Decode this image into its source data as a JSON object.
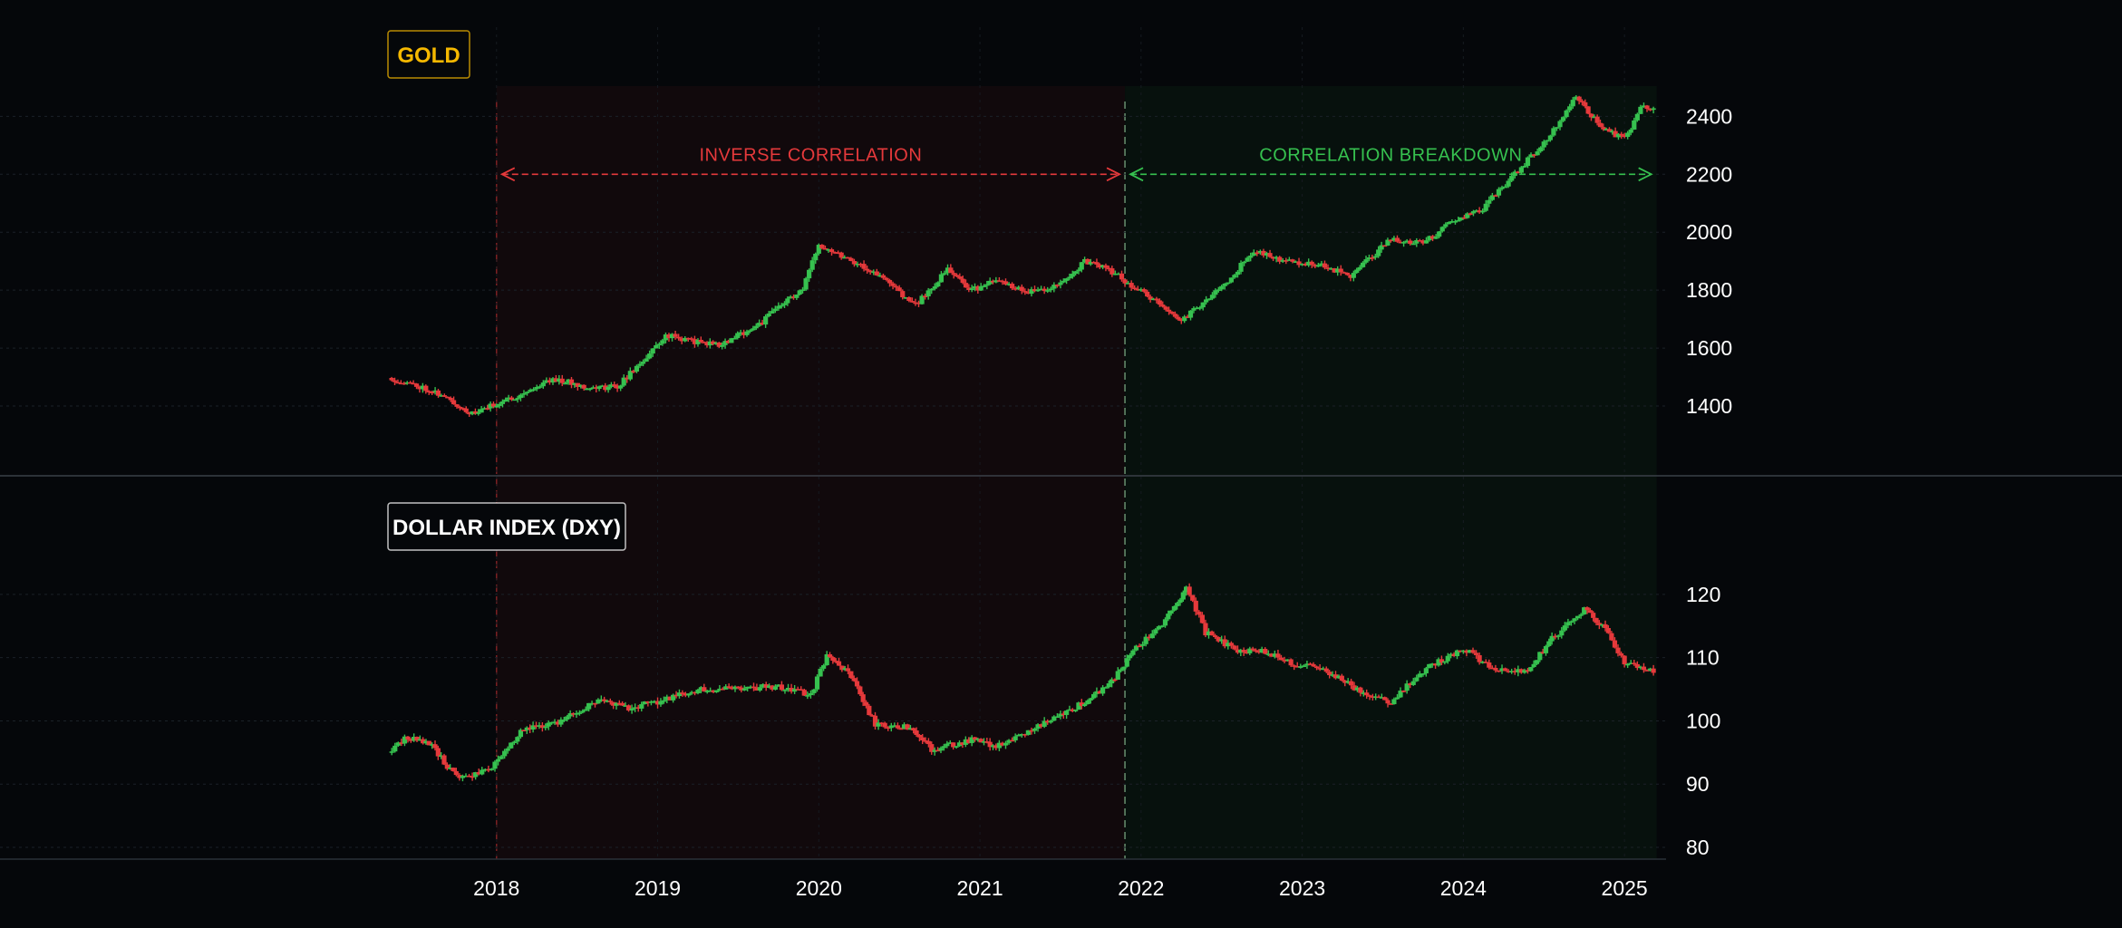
{
  "chart_data": [
    {
      "type": "candlestick",
      "panel": "top",
      "title": "GOLD",
      "ylim": [
        1300,
        2520
      ],
      "yticks": [
        1400,
        1600,
        1800,
        2000,
        2200,
        2400
      ],
      "grid": true,
      "start": [
        2017.33,
        1497
      ],
      "anchors": [
        [
          2017.6,
          1455
        ],
        [
          2017.85,
          1372
        ],
        [
          2018.0,
          1408
        ],
        [
          2018.15,
          1440
        ],
        [
          2018.35,
          1495
        ],
        [
          2018.6,
          1462
        ],
        [
          2018.75,
          1468
        ],
        [
          2018.95,
          1580
        ],
        [
          2019.05,
          1645
        ],
        [
          2019.25,
          1620
        ],
        [
          2019.4,
          1612
        ],
        [
          2019.65,
          1690
        ],
        [
          2019.75,
          1745
        ],
        [
          2019.9,
          1800
        ],
        [
          2020.0,
          1960
        ],
        [
          2020.2,
          1905
        ],
        [
          2020.4,
          1840
        ],
        [
          2020.6,
          1748
        ],
        [
          2020.8,
          1870
        ],
        [
          2020.95,
          1800
        ],
        [
          2021.1,
          1830
        ],
        [
          2021.3,
          1795
        ],
        [
          2021.5,
          1818
        ],
        [
          2021.65,
          1900
        ],
        [
          2021.8,
          1870
        ],
        [
          2022.0,
          1795
        ],
        [
          2022.25,
          1695
        ],
        [
          2022.5,
          1810
        ],
        [
          2022.7,
          1935
        ],
        [
          2022.9,
          1900
        ],
        [
          2023.1,
          1890
        ],
        [
          2023.3,
          1850
        ],
        [
          2023.55,
          1975
        ],
        [
          2023.75,
          1960
        ],
        [
          2023.95,
          2045
        ],
        [
          2024.1,
          2070
        ],
        [
          2024.3,
          2190
        ],
        [
          2024.5,
          2310
        ],
        [
          2024.7,
          2465
        ],
        [
          2024.85,
          2365
        ],
        [
          2025.0,
          2320
        ],
        [
          2025.1,
          2430
        ],
        [
          2025.18,
          2420
        ]
      ],
      "volatility": 9,
      "seed": 11,
      "annotations": [
        {
          "text": "INVERSE CORRELATION",
          "x_start": 2018.0,
          "x_end": 2021.9,
          "y": 2200,
          "color": "#e5393b"
        },
        {
          "text": "CORRELATION BREAKDOWN",
          "x_start": 2021.9,
          "x_end": 2025.2,
          "y": 2200,
          "color": "#36c14f"
        }
      ]
    },
    {
      "type": "candlestick",
      "panel": "bottom",
      "title": "DOLLAR INDEX (DXY)",
      "ylim": [
        79,
        127
      ],
      "yticks": [
        80,
        90,
        100,
        110,
        120
      ],
      "grid": true,
      "start": [
        2017.33,
        95
      ],
      "anchors": [
        [
          2017.45,
          97.5
        ],
        [
          2017.6,
          96
        ],
        [
          2017.75,
          91
        ],
        [
          2017.95,
          92
        ],
        [
          2018.15,
          98.5
        ],
        [
          2018.4,
          100
        ],
        [
          2018.65,
          103.5
        ],
        [
          2018.8,
          102
        ],
        [
          2019.0,
          103
        ],
        [
          2019.25,
          105
        ],
        [
          2019.5,
          105
        ],
        [
          2019.75,
          105.5
        ],
        [
          2019.95,
          104
        ],
        [
          2020.05,
          110.5
        ],
        [
          2020.2,
          107
        ],
        [
          2020.35,
          99.5
        ],
        [
          2020.55,
          99
        ],
        [
          2020.7,
          95.5
        ],
        [
          2020.95,
          97
        ],
        [
          2021.1,
          96
        ],
        [
          2021.3,
          98.5
        ],
        [
          2021.5,
          101
        ],
        [
          2021.65,
          103
        ],
        [
          2021.8,
          105.5
        ],
        [
          2021.95,
          111
        ],
        [
          2022.15,
          116
        ],
        [
          2022.28,
          121
        ],
        [
          2022.4,
          114
        ],
        [
          2022.6,
          111
        ],
        [
          2022.75,
          111
        ],
        [
          2022.95,
          109
        ],
        [
          2023.15,
          108
        ],
        [
          2023.4,
          104
        ],
        [
          2023.55,
          103
        ],
        [
          2023.75,
          108
        ],
        [
          2024.0,
          111.5
        ],
        [
          2024.2,
          108
        ],
        [
          2024.4,
          108
        ],
        [
          2024.55,
          113
        ],
        [
          2024.75,
          117.5
        ],
        [
          2024.9,
          114
        ],
        [
          2025.0,
          109
        ],
        [
          2025.18,
          108
        ]
      ],
      "volatility": 0.45,
      "seed": 29
    }
  ],
  "x_axis": {
    "ticks": [
      {
        "label": "2018",
        "value": 2018.0
      },
      {
        "label": "2019",
        "value": 2019.0
      },
      {
        "label": "2020",
        "value": 2020.0
      },
      {
        "label": "2021",
        "value": 2021.0
      },
      {
        "label": "2022",
        "value": 2022.0
      },
      {
        "label": "2023",
        "value": 2023.0
      },
      {
        "label": "2024",
        "value": 2024.0
      },
      {
        "label": "2025",
        "value": 2025.0
      }
    ]
  },
  "regimes": [
    {
      "x_start": 2018.0,
      "x_end": 2021.9,
      "color": "#e5393b"
    },
    {
      "x_start": 2021.9,
      "x_end": 2025.2,
      "color": "#36c14f"
    }
  ],
  "colors": {
    "up": "#36c14f",
    "down": "#e5393b",
    "gold_label": "#f5b800",
    "dxy_label": "#ffffff",
    "background": "#05070a",
    "text": "#ffffff"
  }
}
